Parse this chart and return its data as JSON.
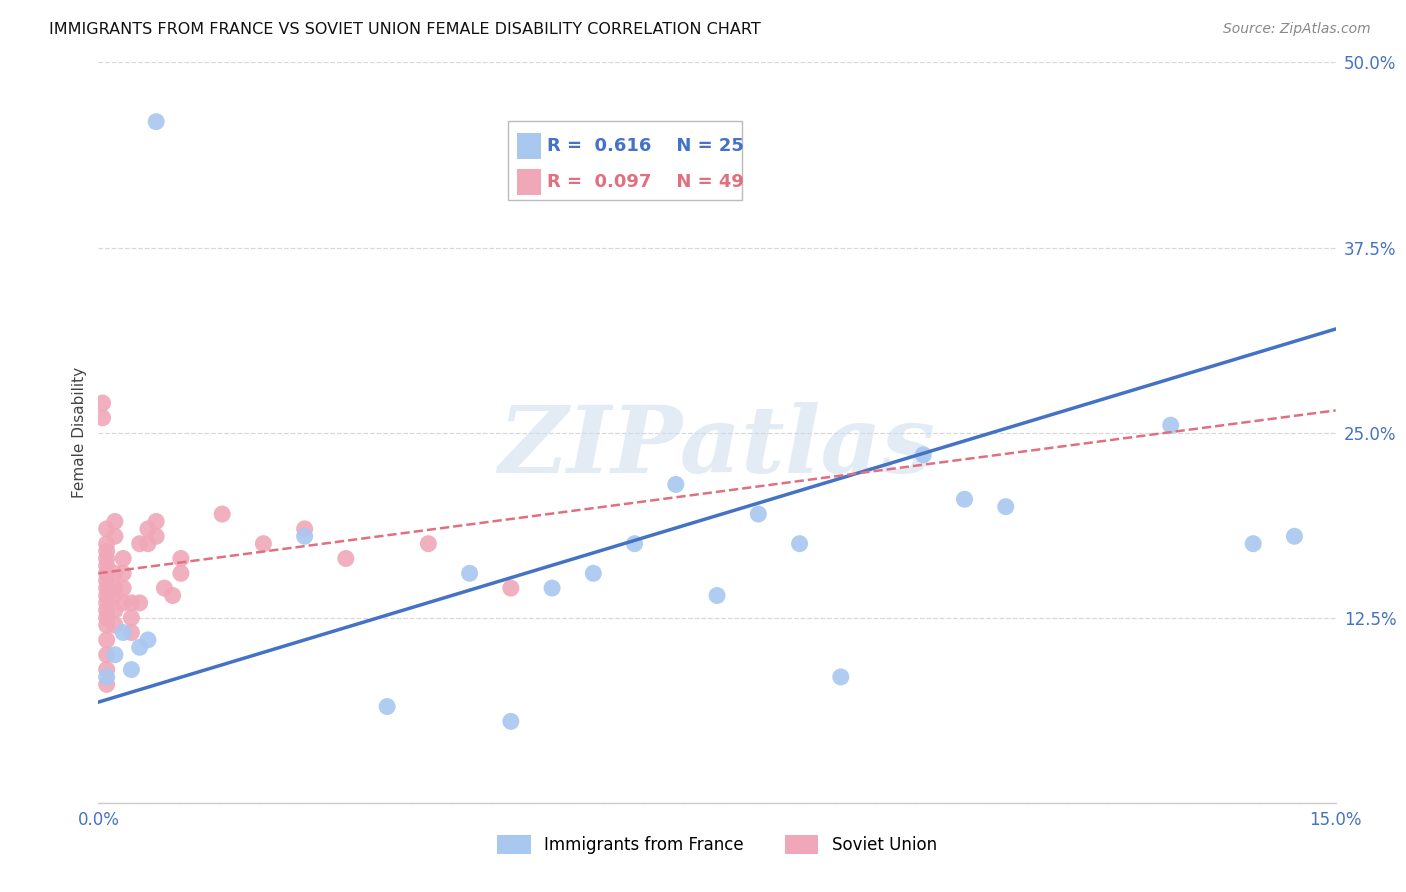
{
  "title": "IMMIGRANTS FROM FRANCE VS SOVIET UNION FEMALE DISABILITY CORRELATION CHART",
  "source": "Source: ZipAtlas.com",
  "ylabel": "Female Disability",
  "xlim": [
    0.0,
    0.15
  ],
  "ylim": [
    0.0,
    0.5
  ],
  "france_color": "#a8c8f0",
  "soviet_color": "#f0a8b8",
  "france_line_color": "#4472C4",
  "soviet_line_color": "#e07080",
  "france_R": 0.616,
  "france_N": 25,
  "soviet_R": 0.097,
  "soviet_N": 49,
  "france_x": [
    0.001,
    0.002,
    0.003,
    0.004,
    0.005,
    0.006,
    0.007,
    0.025,
    0.035,
    0.045,
    0.05,
    0.055,
    0.06,
    0.065,
    0.07,
    0.075,
    0.08,
    0.085,
    0.09,
    0.1,
    0.105,
    0.11,
    0.13,
    0.14,
    0.145
  ],
  "france_y": [
    0.085,
    0.1,
    0.115,
    0.09,
    0.105,
    0.11,
    0.46,
    0.18,
    0.065,
    0.155,
    0.055,
    0.145,
    0.155,
    0.175,
    0.215,
    0.14,
    0.195,
    0.175,
    0.085,
    0.235,
    0.205,
    0.2,
    0.255,
    0.175,
    0.18
  ],
  "soviet_x": [
    0.0005,
    0.0005,
    0.001,
    0.001,
    0.001,
    0.001,
    0.001,
    0.001,
    0.001,
    0.001,
    0.001,
    0.001,
    0.001,
    0.001,
    0.001,
    0.001,
    0.001,
    0.001,
    0.001,
    0.002,
    0.002,
    0.002,
    0.002,
    0.002,
    0.002,
    0.002,
    0.003,
    0.003,
    0.003,
    0.003,
    0.004,
    0.004,
    0.004,
    0.005,
    0.005,
    0.006,
    0.006,
    0.007,
    0.007,
    0.008,
    0.009,
    0.01,
    0.01,
    0.015,
    0.02,
    0.025,
    0.03,
    0.04,
    0.05
  ],
  "soviet_y": [
    0.26,
    0.27,
    0.17,
    0.16,
    0.15,
    0.14,
    0.13,
    0.12,
    0.11,
    0.1,
    0.09,
    0.08,
    0.185,
    0.175,
    0.165,
    0.155,
    0.145,
    0.135,
    0.125,
    0.14,
    0.13,
    0.12,
    0.155,
    0.145,
    0.19,
    0.18,
    0.155,
    0.165,
    0.145,
    0.135,
    0.135,
    0.125,
    0.115,
    0.135,
    0.175,
    0.175,
    0.185,
    0.19,
    0.18,
    0.145,
    0.14,
    0.155,
    0.165,
    0.195,
    0.175,
    0.185,
    0.165,
    0.175,
    0.145
  ],
  "france_trend_x": [
    0.0,
    0.15
  ],
  "france_trend_y": [
    0.068,
    0.32
  ],
  "soviet_trend_x": [
    0.0,
    0.15
  ],
  "soviet_trend_y": [
    0.155,
    0.265
  ],
  "watermark_text": "ZIPatlas",
  "background_color": "#ffffff",
  "grid_color": "#d8d8d8"
}
